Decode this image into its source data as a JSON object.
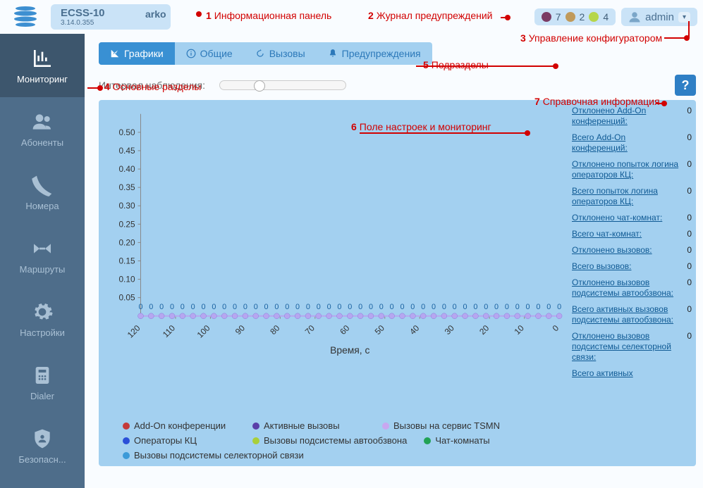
{
  "app": {
    "name": "ECSS-10",
    "version": "3.14.0.355",
    "domain": "arko"
  },
  "alerts": {
    "items": [
      {
        "color": "#7b3b64",
        "count": 7
      },
      {
        "color": "#c09a5a",
        "count": 2
      },
      {
        "color": "#b6d64a",
        "count": 4
      }
    ]
  },
  "user": {
    "name": "admin"
  },
  "sidebar": {
    "items": [
      {
        "id": "monitoring",
        "label": "Мониторинг",
        "active": true
      },
      {
        "id": "subscribers",
        "label": "Абоненты"
      },
      {
        "id": "numbers",
        "label": "Номера"
      },
      {
        "id": "routes",
        "label": "Маршруты"
      },
      {
        "id": "settings",
        "label": "Настройки"
      },
      {
        "id": "dialer",
        "label": "Dialer"
      },
      {
        "id": "security",
        "label": "Безопасн..."
      }
    ]
  },
  "tabs": {
    "items": [
      {
        "id": "charts",
        "label": "Графики",
        "active": true
      },
      {
        "id": "general",
        "label": "Общие"
      },
      {
        "id": "calls",
        "label": "Вызовы"
      },
      {
        "id": "warnings",
        "label": "Предупреждения"
      }
    ]
  },
  "interval": {
    "label": "Интервал наблюдения:"
  },
  "help": {
    "glyph": "?"
  },
  "chart": {
    "type": "line",
    "title": "",
    "xlabel": "Время, с",
    "ylabel": "",
    "xlim": [
      120,
      0
    ],
    "ylim": [
      0,
      0.55
    ],
    "yticks": [
      0.05,
      0.1,
      0.15,
      0.2,
      0.25,
      0.3,
      0.35,
      0.4,
      0.45,
      0.5
    ],
    "xticks": [
      120,
      110,
      100,
      90,
      80,
      70,
      60,
      50,
      40,
      30,
      20,
      10,
      0
    ],
    "xtick_rotation": -45,
    "marker_interval": 3,
    "marker_count": 41,
    "marker_color": "#b6a7f0",
    "marker_radius": 4,
    "zero_overlay": "0",
    "axis_color": "#888888",
    "label_fontsize": 14,
    "tick_fontsize": 12,
    "background_color": "#a3d0f0",
    "series_all_zero": true
  },
  "legend": [
    {
      "color": "#c43a3a",
      "label": "Add-On конференции"
    },
    {
      "color": "#5a3fa8",
      "label": "Активные вызовы"
    },
    {
      "color": "#c9a7f0",
      "label": "Вызовы на сервис TSMN"
    },
    {
      "color": "#2b4fd8",
      "label": "Операторы КЦ"
    },
    {
      "color": "#a9cf3a",
      "label": "Вызовы подсистемы автообзвона"
    },
    {
      "color": "#22a255",
      "label": "Чат-комнаты"
    },
    {
      "color": "#3c9ad8",
      "label": "Вызовы подсистемы селекторной связи"
    }
  ],
  "stats": [
    {
      "label": "Отклонено Add-On конференций:",
      "value": 0
    },
    {
      "label": "Всего Add-On конференций:",
      "value": 0
    },
    {
      "label": "Отклонено попыток логина операторов КЦ:",
      "value": 0
    },
    {
      "label": "Всего попыток логина операторов КЦ:",
      "value": 0
    },
    {
      "label": "Отклонено чат-комнат:",
      "value": 0
    },
    {
      "label": "Всего чат-комнат:",
      "value": 0
    },
    {
      "label": "Отклонено вызовов:",
      "value": 0
    },
    {
      "label": "Всего вызовов:",
      "value": 0
    },
    {
      "label": "Отклонено вызовов подсистемы автообзвона:",
      "value": 0
    },
    {
      "label": "Всего активных вызовов подсистемы автообзвона:",
      "value": 0
    },
    {
      "label": "Отклонено вызовов подсистемы селекторной связи:",
      "value": 0
    },
    {
      "label": "Всего активных",
      "value": ""
    }
  ],
  "annotations": [
    {
      "n": 1,
      "text": "Информационная панель"
    },
    {
      "n": 2,
      "text": "Журнал предупреждений"
    },
    {
      "n": 3,
      "text": "Управление конфигуратором"
    },
    {
      "n": 4,
      "text": "Основные разделы"
    },
    {
      "n": 5,
      "text": "Подразделы"
    },
    {
      "n": 6,
      "text": "Поле настроек и мониторинг"
    },
    {
      "n": 7,
      "text": "Справочная информация"
    }
  ]
}
